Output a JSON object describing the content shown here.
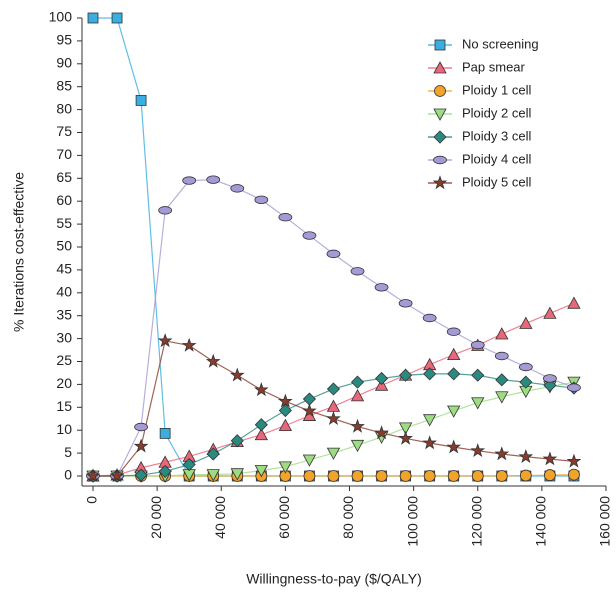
{
  "chart_data": {
    "type": "line",
    "x_label": "Willingness-to-pay ($/QALY)",
    "y_label": "% Iterations cost-effective",
    "xlim": [
      0,
      160000
    ],
    "xticks": [
      0,
      {
        "value": 20000,
        "label": "20 000"
      },
      {
        "value": 40000,
        "label": "40 000"
      },
      {
        "value": 60000,
        "label": "60 000"
      },
      {
        "value": 80000,
        "label": "80 000"
      },
      {
        "value": 100000,
        "label": "100 000"
      },
      {
        "value": 120000,
        "label": "120 000"
      },
      {
        "value": 140000,
        "label": "140 000"
      },
      {
        "value": 160000,
        "label": "160 000"
      }
    ],
    "ylim": [
      0,
      100
    ],
    "yticks": [
      0,
      5,
      10,
      15,
      20,
      25,
      30,
      35,
      40,
      45,
      50,
      55,
      60,
      65,
      70,
      75,
      80,
      85,
      90,
      95,
      100
    ],
    "legend": "top-right",
    "x": [
      0,
      7500,
      15000,
      22500,
      30000,
      37500,
      45000,
      52500,
      60000,
      67500,
      75000,
      82500,
      90000,
      97500,
      105000,
      112500,
      120000,
      127500,
      135000,
      142500,
      150000
    ],
    "series": [
      {
        "name": "No screening",
        "color": "#3aaee0",
        "marker": "square",
        "values": [
          100,
          100,
          82,
          9.3,
          0,
          0,
          0,
          0,
          0,
          0,
          0,
          0,
          0,
          0,
          0,
          0,
          0,
          0,
          0,
          0,
          0
        ]
      },
      {
        "name": "Pap smear",
        "color": "#e8677a",
        "marker": "triangle-up",
        "values": [
          0,
          0.2,
          1.8,
          3,
          4.3,
          5.8,
          7.5,
          9,
          11,
          13.2,
          15.2,
          17.5,
          19.8,
          22,
          24.3,
          26.5,
          28.5,
          31,
          33.3,
          35.5,
          37.7
        ]
      },
      {
        "name": "Ploidy 1 cell",
        "color": "#f2a42a",
        "marker": "circle",
        "values": [
          0,
          0,
          0,
          0,
          0,
          0,
          0,
          0,
          0,
          0,
          0,
          0,
          0,
          0,
          0,
          0,
          0,
          0,
          0.1,
          0.2,
          0.3
        ]
      },
      {
        "name": "Ploidy 2 cell",
        "color": "#9edc84",
        "marker": "triangle-down",
        "values": [
          0,
          0,
          0,
          0,
          0.3,
          0.3,
          0.5,
          1.2,
          2,
          3.5,
          5,
          6.7,
          8.5,
          10.5,
          12.3,
          14.2,
          16,
          17.3,
          18.5,
          19.5,
          20.5
        ]
      },
      {
        "name": "Ploidy 3 cell",
        "color": "#2b8a80",
        "marker": "diamond",
        "values": [
          0,
          0,
          0.2,
          1,
          2.5,
          4.8,
          7.7,
          11.2,
          14.3,
          16.8,
          19,
          20.5,
          21.3,
          22,
          22.3,
          22.3,
          22,
          21,
          20.5,
          19.8,
          19.2
        ]
      },
      {
        "name": "Ploidy 4 cell",
        "color": "#a59ad6",
        "marker": "ellipse",
        "values": [
          0,
          0,
          10.7,
          58,
          64.5,
          64.7,
          62.8,
          60.3,
          56.5,
          52.5,
          48.5,
          44.7,
          41.2,
          37.7,
          34.5,
          31.5,
          28.6,
          26.2,
          23.8,
          21.3,
          19.3
        ]
      },
      {
        "name": "Ploidy 5 cell",
        "color": "#8a3b2c",
        "marker": "star",
        "values": [
          0,
          0,
          6.5,
          29.5,
          28.5,
          25,
          22,
          18.8,
          16.3,
          14.2,
          12.5,
          10.8,
          9.4,
          8.2,
          7.2,
          6.3,
          5.5,
          4.8,
          4.2,
          3.7,
          3.2
        ]
      }
    ]
  }
}
